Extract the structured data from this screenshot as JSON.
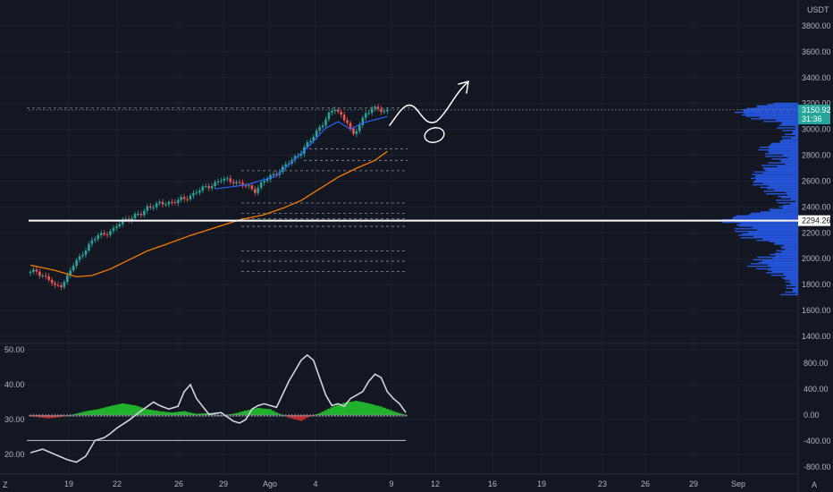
{
  "colors": {
    "background": "#131722",
    "grid": "#1e2230",
    "text": "#b2b5be",
    "candle_up": "#26a69a",
    "candle_down": "#ef5350",
    "ma_fast": "#2962ff",
    "ma_slow": "#f57c00",
    "volume_profile": "#2962ff",
    "support_line": "#ffffff",
    "osc_line": "#d1d4dc",
    "osc_up": "#22c32e",
    "osc_down": "#d32f2f",
    "price_tag": "#26a69a"
  },
  "header": {
    "currency": "USDT"
  },
  "price_tags": {
    "last_price": "3150.92",
    "countdown": "31:36",
    "support": "2294.26"
  },
  "corner_labels": {
    "bottom_left": "Z",
    "bottom_right": "A"
  },
  "chart_data": [
    {
      "type": "candlestick",
      "x_ticks": [
        "19",
        "22",
        "26",
        "29",
        "Ago",
        "4",
        "9",
        "12",
        "16",
        "19",
        "23",
        "26",
        "29",
        "Sep"
      ],
      "y_ticks": [
        "3800.00",
        "3600.00",
        "3400.00",
        "3200.00",
        "3000.00",
        "2800.00",
        "2600.00",
        "2400.00",
        "2200.00",
        "2000.00",
        "1800.00",
        "1600.00",
        "1400.00"
      ],
      "ylim": [
        1400,
        3900
      ],
      "trend": [
        [
          0,
          1890
        ],
        [
          2,
          1905
        ],
        [
          4,
          1870
        ],
        [
          6,
          1840
        ],
        [
          8,
          1780
        ],
        [
          10,
          1800
        ],
        [
          12,
          1860
        ],
        [
          14,
          1950
        ],
        [
          16,
          2010
        ],
        [
          18,
          2080
        ],
        [
          20,
          2130
        ],
        [
          22,
          2180
        ],
        [
          24,
          2195
        ],
        [
          27,
          2220
        ],
        [
          30,
          2300
        ],
        [
          33,
          2320
        ],
        [
          36,
          2345
        ],
        [
          38,
          2400
        ],
        [
          42,
          2420
        ],
        [
          46,
          2440
        ],
        [
          50,
          2460
        ],
        [
          54,
          2520
        ],
        [
          58,
          2560
        ],
        [
          62,
          2610
        ],
        [
          66,
          2600
        ],
        [
          70,
          2560
        ],
        [
          73,
          2530
        ],
        [
          76,
          2600
        ],
        [
          79,
          2650
        ],
        [
          82,
          2700
        ],
        [
          85,
          2760
        ],
        [
          88,
          2830
        ],
        [
          91,
          2910
        ],
        [
          94,
          3020
        ],
        [
          97,
          3110
        ],
        [
          99,
          3160
        ],
        [
          101,
          3110
        ],
        [
          103,
          3060
        ],
        [
          104,
          2990
        ],
        [
          105,
          2950
        ],
        [
          107,
          3040
        ],
        [
          109,
          3130
        ],
        [
          111,
          3150
        ],
        [
          113,
          3160
        ],
        [
          115,
          3140
        ],
        [
          116,
          3150
        ]
      ],
      "ma_fast": [
        [
          60,
          2540
        ],
        [
          70,
          2570
        ],
        [
          80,
          2640
        ],
        [
          90,
          2860
        ],
        [
          96,
          3010
        ],
        [
          100,
          3060
        ],
        [
          104,
          3000
        ],
        [
          108,
          3050
        ],
        [
          116,
          3100
        ]
      ],
      "ma_slow": [
        [
          0,
          1950
        ],
        [
          8,
          1910
        ],
        [
          15,
          1860
        ],
        [
          20,
          1870
        ],
        [
          26,
          1920
        ],
        [
          32,
          1990
        ],
        [
          38,
          2060
        ],
        [
          44,
          2110
        ],
        [
          52,
          2180
        ],
        [
          60,
          2240
        ],
        [
          68,
          2300
        ],
        [
          76,
          2340
        ],
        [
          82,
          2390
        ],
        [
          88,
          2450
        ],
        [
          94,
          2540
        ],
        [
          100,
          2630
        ],
        [
          106,
          2700
        ],
        [
          112,
          2760
        ],
        [
          116,
          2830
        ]
      ],
      "support_level": 2294.26,
      "last_price": 3150.92,
      "dashed_levels": [
        3165,
        2850,
        2760,
        2680,
        2430,
        2350,
        2310,
        2250,
        2060,
        1980,
        1900
      ]
    },
    {
      "type": "line",
      "name_hidden": true,
      "left_ticks": [
        "50.00",
        "40.00",
        "30.00",
        "20.00"
      ],
      "right_ticks": [
        "800.00",
        "400.00",
        "0.00",
        "-400.00",
        "-800.00"
      ],
      "left_range": [
        15,
        50
      ],
      "right_range": [
        -900,
        1000
      ],
      "baseline_level": 24,
      "line": [
        [
          0,
          20.5
        ],
        [
          4,
          21.5
        ],
        [
          8,
          20
        ],
        [
          12,
          18.5
        ],
        [
          15,
          17.8
        ],
        [
          18,
          19.5
        ],
        [
          21,
          24
        ],
        [
          24,
          24.8
        ],
        [
          26,
          26
        ],
        [
          28,
          27.5
        ],
        [
          32,
          29.8
        ],
        [
          36,
          32.5
        ],
        [
          40,
          35
        ],
        [
          42,
          34
        ],
        [
          45,
          33
        ],
        [
          48,
          33.8
        ],
        [
          50,
          38
        ],
        [
          52,
          40
        ],
        [
          54,
          36
        ],
        [
          58,
          31.5
        ],
        [
          62,
          32
        ],
        [
          66,
          29.5
        ],
        [
          68,
          29
        ],
        [
          70,
          30
        ],
        [
          72,
          33
        ],
        [
          74,
          34
        ],
        [
          76,
          34.5
        ],
        [
          80,
          33.5
        ],
        [
          84,
          41
        ],
        [
          88,
          47
        ],
        [
          90,
          48.5
        ],
        [
          92,
          47
        ],
        [
          94,
          42
        ],
        [
          96,
          37
        ],
        [
          98,
          34
        ],
        [
          100,
          34.5
        ],
        [
          102,
          33.8
        ],
        [
          104,
          36
        ],
        [
          106,
          37
        ],
        [
          108,
          38
        ],
        [
          110,
          41
        ],
        [
          112,
          43
        ],
        [
          114,
          42
        ],
        [
          116,
          38
        ],
        [
          118,
          36
        ],
        [
          120,
          34.5
        ],
        [
          122,
          32
        ]
      ],
      "histogram": [
        [
          0,
          -20
        ],
        [
          6,
          -50
        ],
        [
          10,
          -30
        ],
        [
          14,
          10
        ],
        [
          18,
          60
        ],
        [
          22,
          90
        ],
        [
          26,
          140
        ],
        [
          30,
          180
        ],
        [
          34,
          150
        ],
        [
          38,
          90
        ],
        [
          42,
          60
        ],
        [
          46,
          40
        ],
        [
          50,
          60
        ],
        [
          54,
          20
        ],
        [
          58,
          30
        ],
        [
          62,
          -10
        ],
        [
          66,
          20
        ],
        [
          70,
          70
        ],
        [
          74,
          110
        ],
        [
          78,
          90
        ],
        [
          80,
          40
        ],
        [
          84,
          -40
        ],
        [
          88,
          -90
        ],
        [
          90,
          -40
        ],
        [
          94,
          30
        ],
        [
          98,
          120
        ],
        [
          102,
          190
        ],
        [
          106,
          220
        ],
        [
          110,
          180
        ],
        [
          114,
          130
        ],
        [
          118,
          60
        ],
        [
          122,
          0
        ]
      ]
    }
  ]
}
